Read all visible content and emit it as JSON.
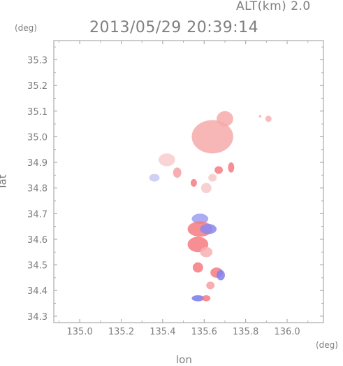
{
  "header": {
    "altitude_label": "ALT(km) 2.0",
    "timestamp": "2013/05/29 20:39:14"
  },
  "axes": {
    "x_unit": "(deg)",
    "y_unit": "(deg)",
    "x_label": "lon",
    "y_label": "lat"
  },
  "chart_data": {
    "type": "heatmap",
    "xlabel": "lon",
    "ylabel": "lat",
    "xlim": [
      134.875,
      136.175
    ],
    "ylim": [
      34.275,
      35.375
    ],
    "x_ticks": [
      135.0,
      135.2,
      135.4,
      135.6,
      135.8,
      136.0
    ],
    "x_tick_labels": [
      "135.0",
      "135.2",
      "135.4",
      "135.6",
      "135.8",
      "136.0"
    ],
    "y_ticks": [
      34.3,
      34.4,
      34.5,
      34.6,
      34.7,
      34.8,
      34.9,
      35.0,
      35.1,
      35.2,
      35.3
    ],
    "y_tick_labels": [
      "34.3",
      "34.4",
      "34.5",
      "34.6",
      "34.7",
      "34.8",
      "34.9",
      "35.0",
      "35.1",
      "35.2",
      "35.3"
    ],
    "grid": false,
    "colors": {
      "positive": "#f47a80",
      "positive_light": "#f9b5b5",
      "negative": "#7e7ef0",
      "negative_light": "#c8c8f5"
    },
    "blobs": [
      {
        "lon": 135.64,
        "lat": 35.0,
        "rlon": 0.1,
        "rlat": 0.065,
        "color": "#f6aaaa",
        "value": "positive-weak"
      },
      {
        "lon": 135.7,
        "lat": 35.07,
        "rlon": 0.04,
        "rlat": 0.03,
        "color": "#f6aaaa",
        "value": "positive-weak"
      },
      {
        "lon": 135.91,
        "lat": 35.07,
        "rlon": 0.015,
        "rlat": 0.012,
        "color": "#f6b0b0",
        "value": "positive-weak"
      },
      {
        "lon": 135.87,
        "lat": 35.08,
        "rlon": 0.006,
        "rlat": 0.005,
        "color": "#f6b0b0",
        "value": "positive-weak"
      },
      {
        "lon": 135.42,
        "lat": 34.91,
        "rlon": 0.04,
        "rlat": 0.025,
        "color": "#f8cccc",
        "value": "positive-weak"
      },
      {
        "lon": 135.36,
        "lat": 34.84,
        "rlon": 0.025,
        "rlat": 0.015,
        "color": "#c8c8f5",
        "value": "negative-weak"
      },
      {
        "lon": 135.47,
        "lat": 34.86,
        "rlon": 0.02,
        "rlat": 0.02,
        "color": "#f4a0a5",
        "value": "positive"
      },
      {
        "lon": 135.67,
        "lat": 34.87,
        "rlon": 0.02,
        "rlat": 0.015,
        "color": "#f47a80",
        "value": "positive"
      },
      {
        "lon": 135.73,
        "lat": 34.88,
        "rlon": 0.015,
        "rlat": 0.02,
        "color": "#f47a80",
        "value": "positive"
      },
      {
        "lon": 135.61,
        "lat": 34.8,
        "rlon": 0.025,
        "rlat": 0.02,
        "color": "#f8c8c8",
        "value": "positive-weak"
      },
      {
        "lon": 135.64,
        "lat": 34.84,
        "rlon": 0.02,
        "rlat": 0.015,
        "color": "#f8c8c8",
        "value": "positive-weak"
      },
      {
        "lon": 135.55,
        "lat": 34.82,
        "rlon": 0.015,
        "rlat": 0.015,
        "color": "#f47a80",
        "value": "positive"
      },
      {
        "lon": 135.58,
        "lat": 34.68,
        "rlon": 0.04,
        "rlat": 0.02,
        "color": "#9e9ef0",
        "value": "negative"
      },
      {
        "lon": 135.58,
        "lat": 34.64,
        "rlon": 0.06,
        "rlat": 0.03,
        "color": "#f47a80",
        "value": "positive"
      },
      {
        "lon": 135.62,
        "lat": 34.64,
        "rlon": 0.04,
        "rlat": 0.02,
        "color": "#8888ee",
        "value": "negative"
      },
      {
        "lon": 135.57,
        "lat": 34.58,
        "rlon": 0.05,
        "rlat": 0.03,
        "color": "#f47a80",
        "value": "positive"
      },
      {
        "lon": 135.61,
        "lat": 34.55,
        "rlon": 0.03,
        "rlat": 0.02,
        "color": "#f8b0b0",
        "value": "positive-weak"
      },
      {
        "lon": 135.57,
        "lat": 34.49,
        "rlon": 0.025,
        "rlat": 0.02,
        "color": "#f47a80",
        "value": "positive"
      },
      {
        "lon": 135.66,
        "lat": 34.47,
        "rlon": 0.03,
        "rlat": 0.02,
        "color": "#f47a80",
        "value": "positive"
      },
      {
        "lon": 135.68,
        "lat": 34.46,
        "rlon": 0.02,
        "rlat": 0.02,
        "color": "#8080ee",
        "value": "negative"
      },
      {
        "lon": 135.63,
        "lat": 34.42,
        "rlon": 0.02,
        "rlat": 0.015,
        "color": "#f6a0a0",
        "value": "positive"
      },
      {
        "lon": 135.57,
        "lat": 34.37,
        "rlon": 0.03,
        "rlat": 0.012,
        "color": "#7878ee",
        "value": "negative"
      },
      {
        "lon": 135.61,
        "lat": 34.37,
        "rlon": 0.02,
        "rlat": 0.012,
        "color": "#f47a80",
        "value": "positive"
      }
    ]
  }
}
